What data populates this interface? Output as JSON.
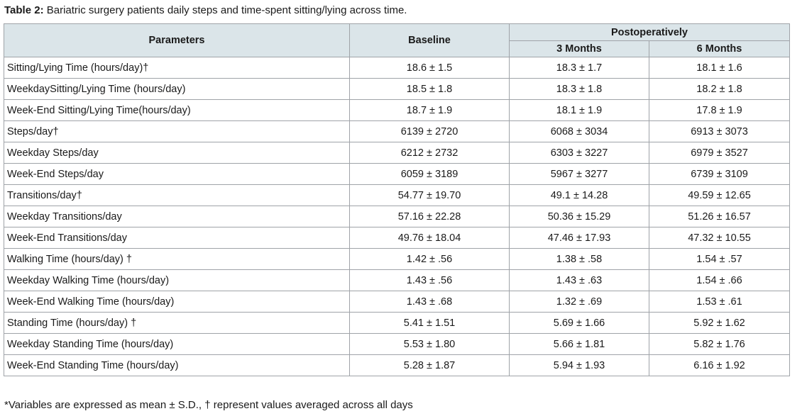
{
  "caption": {
    "label": "Table 2:",
    "text": " Bariatric surgery patients daily steps and time-spent sitting/lying across time."
  },
  "table": {
    "headers": {
      "parameters": "Parameters",
      "baseline": "Baseline",
      "postop": "Postoperatively",
      "m3": "3 Months",
      "m6": "6 Months"
    },
    "rows": [
      {
        "param": "Sitting/Lying Time (hours/day)†",
        "baseline": "18.6 ± 1.5",
        "m3": "18.3 ± 1.7",
        "m6": "18.1 ± 1.6"
      },
      {
        "param": "WeekdaySitting/Lying Time (hours/day)",
        "baseline": "18.5 ± 1.8",
        "m3": "18.3 ± 1.8",
        "m6": "18.2 ± 1.8"
      },
      {
        "param": "Week-End Sitting/Lying Time(hours/day)",
        "baseline": "18.7 ± 1.9",
        "m3": "18.1 ± 1.9",
        "m6": "17.8 ± 1.9"
      },
      {
        "param": "Steps/day†",
        "baseline": "6139 ± 2720",
        "m3": "6068 ± 3034",
        "m6": "6913 ± 3073"
      },
      {
        "param": "Weekday Steps/day",
        "baseline": "6212 ± 2732",
        "m3": "6303 ± 3227",
        "m6": "6979 ± 3527"
      },
      {
        "param": "Week-End Steps/day",
        "baseline": "6059 ± 3189",
        "m3": "5967 ± 3277",
        "m6": "6739 ± 3109"
      },
      {
        "param": "Transitions/day†",
        "baseline": "54.77 ± 19.70",
        "m3": "49.1 ± 14.28",
        "m6": "49.59 ± 12.65"
      },
      {
        "param": "Weekday Transitions/day",
        "baseline": "57.16 ± 22.28",
        "m3": "50.36 ± 15.29",
        "m6": "51.26 ± 16.57"
      },
      {
        "param": "Week-End Transitions/day",
        "baseline": "49.76 ± 18.04",
        "m3": "47.46 ± 17.93",
        "m6": "47.32 ± 10.55"
      },
      {
        "param": "Walking Time (hours/day) †",
        "baseline": "1.42 ± .56",
        "m3": "1.38 ± .58",
        "m6": "1.54 ± .57"
      },
      {
        "param": "Weekday Walking Time (hours/day)",
        "baseline": "1.43 ± .56",
        "m3": "1.43 ± .63",
        "m6": "1.54 ± .66"
      },
      {
        "param": "Week-End Walking Time (hours/day)",
        "baseline": "1.43 ± .68",
        "m3": "1.32 ± .69",
        "m6": "1.53 ± .61"
      },
      {
        "param": "Standing Time (hours/day) †",
        "baseline": "5.41 ± 1.51",
        "m3": "5.69 ± 1.66",
        "m6": "5.92 ± 1.62"
      },
      {
        "param": "Weekday Standing Time (hours/day)",
        "baseline": "5.53 ± 1.80",
        "m3": "5.66 ± 1.81",
        "m6": "5.82 ± 1.76"
      },
      {
        "param": "Week-End Standing Time (hours/day)",
        "baseline": "5.28 ± 1.87",
        "m3": "5.94 ± 1.93",
        "m6": "6.16 ± 1.92"
      }
    ]
  },
  "footnote": "*Variables are expressed as mean ± S.D., † represent values averaged across all days"
}
